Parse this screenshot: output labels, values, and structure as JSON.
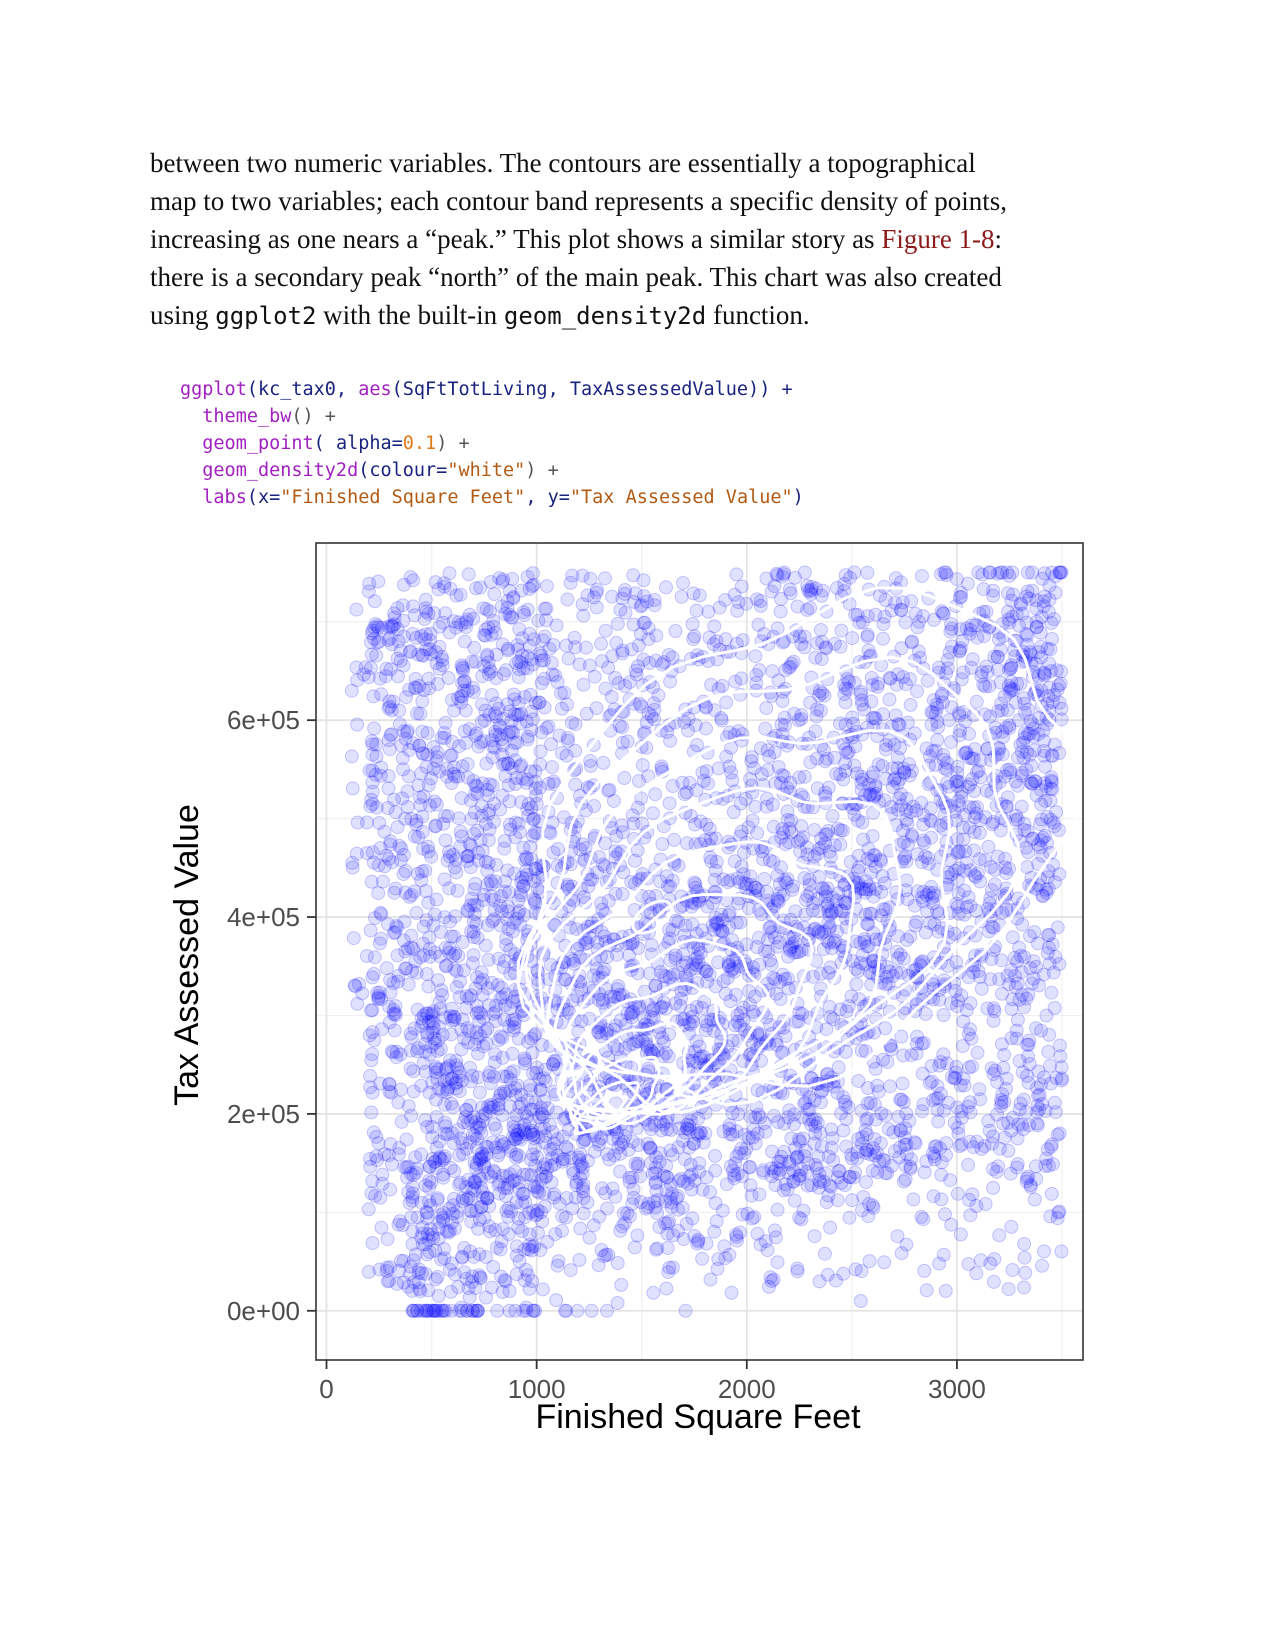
{
  "paragraph": {
    "line1": "between two numeric variables. The contours are essentially a topographical",
    "line2": "map to two variables; each contour band represents a specific density of points,",
    "line3_pre": "increasing as one nears a “peak.” This plot shows a similar story as ",
    "line3_link": "Figure 1-8",
    "line3_post": ":",
    "line4": "there is a secondary peak “north” of the main peak. This chart was also created",
    "line5_pre": "using ",
    "line5_code1": "ggplot2",
    "line5_mid": " with the built-in ",
    "line5_code2": "geom_density2d",
    "line5_post": " function."
  },
  "code": {
    "l1_fn": "ggplot",
    "l1_a": "(kc_tax0, ",
    "l1_fn2": "aes",
    "l1_b": "(SqFtTotLiving, TaxAssessedValue)) +",
    "l2_fn": "theme_bw",
    "l2_a": "() +",
    "l3_fn": "geom_point",
    "l3_a": "( alpha=",
    "l3_num": "0.1",
    "l3_b": ") +",
    "l4_fn": "geom_density2d",
    "l4_a": "(colour=",
    "l4_str": "\"white\"",
    "l4_b": ") +",
    "l5_fn": "labs",
    "l5_a": "(x=",
    "l5_str1": "\"Finished Square Feet\"",
    "l5_b": ", y=",
    "l5_str2": "\"Tax Assessed Value\"",
    "l5_c": ")"
  },
  "chart_data": {
    "type": "scatter",
    "overlay": "2d density contours (white)",
    "point_color": "#0000ff",
    "point_alpha": 0.1,
    "contour_color": "#ffffff",
    "xlabel": "Finished Square Feet",
    "ylabel": "Tax Assessed Value",
    "xlim": [
      -50,
      3600
    ],
    "ylim": [
      -50000,
      780000
    ],
    "x_ticks": [
      0,
      1000,
      2000,
      3000
    ],
    "x_tick_labels": [
      "0",
      "1000",
      "2000",
      "3000"
    ],
    "y_ticks": [
      0,
      200000,
      400000,
      600000
    ],
    "y_tick_labels": [
      "0e+00",
      "2e+05",
      "4e+05",
      "6e+05"
    ],
    "data_range": {
      "x": [
        100,
        3500
      ],
      "y": [
        0,
        750000
      ]
    },
    "main_peak": {
      "x": 1300,
      "y": 200000
    },
    "secondary_peak": {
      "x": 1550,
      "y": 400000
    },
    "theme": "bw",
    "grid": true
  }
}
